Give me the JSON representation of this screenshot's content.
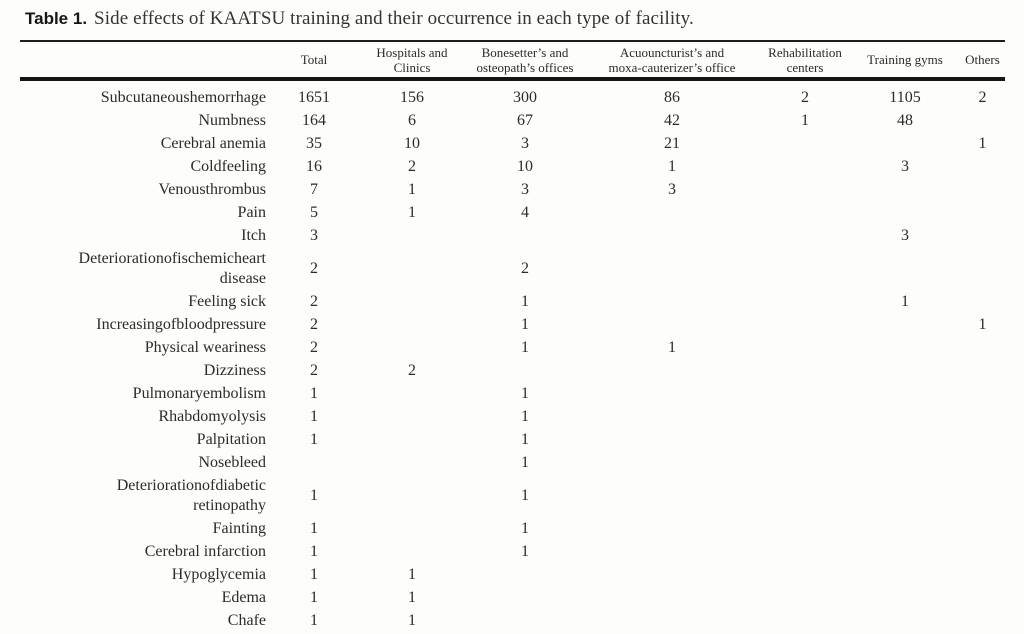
{
  "caption": {
    "label": "Table 1.",
    "text": "Side effects of KAATSU training and their occurrence in each type of facility."
  },
  "table": {
    "columns": [
      {
        "id": "side-effect",
        "lines": [
          ""
        ]
      },
      {
        "id": "total",
        "lines": [
          "Total"
        ]
      },
      {
        "id": "hospitals-clinics",
        "lines": [
          "Hospitals and",
          "Clinics"
        ]
      },
      {
        "id": "bonesetter-osteopath",
        "lines": [
          "Bonesetter’s and",
          "osteopath’s offices"
        ]
      },
      {
        "id": "acupuncturist-moxa",
        "lines": [
          "Acuouncturist’s and",
          "moxa-cauterizer’s office"
        ]
      },
      {
        "id": "rehabilitation-centers",
        "lines": [
          "Rehabilitation",
          "centers"
        ]
      },
      {
        "id": "training-gyms",
        "lines": [
          "Training gyms"
        ]
      },
      {
        "id": "others",
        "lines": [
          "Others"
        ]
      }
    ],
    "rows": [
      {
        "label": "Subcutaneoushemorrhage",
        "values": [
          "1651",
          "156",
          "300",
          "86",
          "2",
          "1105",
          "2"
        ]
      },
      {
        "label": "Numbness",
        "values": [
          "164",
          "6",
          "67",
          "42",
          "1",
          "48",
          ""
        ]
      },
      {
        "label": "Cerebral anemia",
        "values": [
          "35",
          "10",
          "3",
          "21",
          "",
          "",
          "1"
        ]
      },
      {
        "label": "Coldfeeling",
        "values": [
          "16",
          "2",
          "10",
          "1",
          "",
          "3",
          ""
        ]
      },
      {
        "label": "Venousthrombus",
        "values": [
          "7",
          "1",
          "3",
          "3",
          "",
          "",
          ""
        ]
      },
      {
        "label": "Pain",
        "values": [
          "5",
          "1",
          "4",
          "",
          "",
          "",
          ""
        ]
      },
      {
        "label": "Itch",
        "values": [
          "3",
          "",
          "",
          "",
          "",
          "3",
          ""
        ]
      },
      {
        "label": "Deteriorationofischemicheart disease",
        "values": [
          "2",
          "",
          "2",
          "",
          "",
          "",
          ""
        ]
      },
      {
        "label": "Feeling sick",
        "values": [
          "2",
          "",
          "1",
          "",
          "",
          "1",
          ""
        ]
      },
      {
        "label": "Increasingofbloodpressure",
        "values": [
          "2",
          "",
          "1",
          "",
          "",
          "",
          "1"
        ]
      },
      {
        "label": "Physical weariness",
        "values": [
          "2",
          "",
          "1",
          "1",
          "",
          "",
          ""
        ]
      },
      {
        "label": "Dizziness",
        "values": [
          "2",
          "2",
          "",
          "",
          "",
          "",
          ""
        ]
      },
      {
        "label": "Pulmonaryembolism",
        "values": [
          "1",
          "",
          "1",
          "",
          "",
          "",
          ""
        ]
      },
      {
        "label": "Rhabdomyolysis",
        "values": [
          "1",
          "",
          "1",
          "",
          "",
          "",
          ""
        ]
      },
      {
        "label": "Palpitation",
        "values": [
          "1",
          "",
          "1",
          "",
          "",
          "",
          ""
        ]
      },
      {
        "label": "Nosebleed",
        "values": [
          "",
          "",
          "1",
          "",
          "",
          "",
          ""
        ]
      },
      {
        "label": "Deteriorationofdiabetic retinopathy",
        "values": [
          "1",
          "",
          "1",
          "",
          "",
          "",
          ""
        ]
      },
      {
        "label": "Fainting",
        "values": [
          "1",
          "",
          "1",
          "",
          "",
          "",
          ""
        ]
      },
      {
        "label": "Cerebral infarction",
        "values": [
          "1",
          "",
          "1",
          "",
          "",
          "",
          ""
        ]
      },
      {
        "label": "Hypoglycemia",
        "values": [
          "1",
          "1",
          "",
          "",
          "",
          "",
          ""
        ]
      },
      {
        "label": "Edema",
        "values": [
          "1",
          "1",
          "",
          "",
          "",
          "",
          ""
        ]
      },
      {
        "label": "Chafe",
        "values": [
          "1",
          "1",
          "",
          "",
          "",
          "",
          ""
        ]
      }
    ]
  },
  "colors": {
    "text": "#2c2b29",
    "rule": "#1e1d1b",
    "background": "#fdfdfc"
  }
}
